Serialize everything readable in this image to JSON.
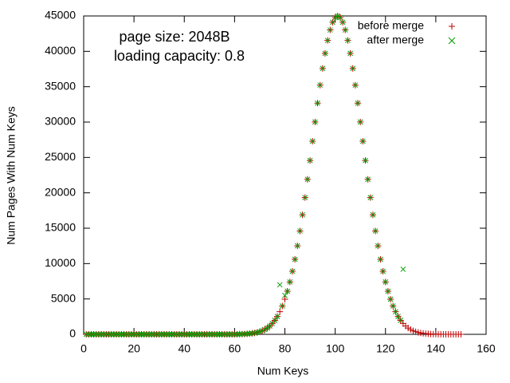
{
  "chart_data": {
    "type": "scatter",
    "annotations": [
      "page size: 2048B",
      "loading capacity: 0.8"
    ],
    "x_label": "Num Keys",
    "y_label": "Num Pages With Num Keys",
    "xlim": [
      0,
      160
    ],
    "xticks": [
      0,
      20,
      40,
      60,
      80,
      100,
      120,
      140,
      160
    ],
    "ylim": [
      0,
      45000
    ],
    "yticks": [
      0,
      5000,
      10000,
      15000,
      20000,
      25000,
      30000,
      35000,
      40000,
      45000
    ],
    "legend": "upper right",
    "x": [
      1,
      2,
      3,
      4,
      5,
      6,
      7,
      8,
      9,
      10,
      11,
      12,
      13,
      14,
      15,
      16,
      17,
      18,
      19,
      20,
      21,
      22,
      23,
      24,
      25,
      26,
      27,
      28,
      29,
      30,
      31,
      32,
      33,
      34,
      35,
      36,
      37,
      38,
      39,
      40,
      41,
      42,
      43,
      44,
      45,
      46,
      47,
      48,
      49,
      50,
      51,
      52,
      53,
      54,
      55,
      56,
      57,
      58,
      59,
      60,
      61,
      62,
      63,
      64,
      65,
      66,
      67,
      68,
      69,
      70,
      71,
      72,
      73,
      74,
      75,
      76,
      77,
      78,
      79,
      80,
      81,
      82,
      83,
      84,
      85,
      86,
      87,
      88,
      89,
      90,
      91,
      92,
      93,
      94,
      95,
      96,
      97,
      98,
      99,
      100,
      101,
      102,
      103,
      104,
      105,
      106,
      107,
      108,
      109,
      110,
      111,
      112,
      113,
      114,
      115,
      116,
      117,
      118,
      119,
      120,
      121,
      122,
      123,
      124,
      125,
      126,
      127,
      128,
      129,
      130,
      131,
      132,
      133,
      134,
      135,
      136,
      137,
      138,
      139,
      140,
      141,
      142,
      143,
      144,
      145,
      146,
      147,
      148,
      149,
      150
    ],
    "series": [
      {
        "name": "before merge",
        "color": "#c00000",
        "marker": "+",
        "values": [
          0,
          0,
          0,
          0,
          0,
          0,
          0,
          0,
          0,
          0,
          0,
          0,
          0,
          0,
          0,
          0,
          0,
          0,
          0,
          0,
          0,
          0,
          0,
          0,
          0,
          0,
          0,
          0,
          0,
          0,
          0,
          0,
          0,
          0,
          0,
          0,
          0,
          0,
          0,
          0,
          0,
          0,
          0,
          0,
          0,
          0,
          0,
          0,
          0,
          0,
          0,
          0,
          0,
          0,
          0,
          0,
          0,
          0,
          0,
          0,
          15,
          22,
          33,
          48,
          69,
          98,
          139,
          194,
          269,
          369,
          500,
          671,
          892,
          1174,
          1531,
          1977,
          2526,
          3195,
          4000,
          4960,
          6090,
          7401,
          8906,
          10606,
          12511,
          14610,
          16890,
          19332,
          21906,
          24575,
          27294,
          30015,
          32676,
          35222,
          37589,
          39713,
          41540,
          43020,
          44109,
          44776,
          45000,
          44776,
          44109,
          43020,
          41540,
          39713,
          37589,
          35222,
          32676,
          30015,
          27294,
          24575,
          21906,
          19332,
          16890,
          14610,
          12511,
          10606,
          8906,
          7401,
          6090,
          4960,
          4000,
          3195,
          2526,
          1977,
          1531,
          1174,
          892,
          671,
          500,
          369,
          269,
          194,
          139,
          98,
          69,
          48,
          33,
          22,
          15,
          10,
          7,
          5,
          3,
          2,
          2,
          1,
          1,
          0
        ]
      },
      {
        "name": "after merge",
        "color": "#00a000",
        "marker": "x",
        "values": [
          0,
          0,
          0,
          0,
          0,
          0,
          0,
          0,
          0,
          0,
          0,
          0,
          0,
          0,
          0,
          0,
          0,
          0,
          0,
          0,
          0,
          0,
          0,
          0,
          0,
          0,
          0,
          0,
          0,
          0,
          0,
          0,
          0,
          0,
          0,
          0,
          0,
          0,
          0,
          0,
          0,
          0,
          0,
          0,
          0,
          0,
          0,
          0,
          0,
          0,
          0,
          0,
          0,
          0,
          0,
          0,
          0,
          0,
          0,
          0,
          15,
          22,
          33,
          48,
          69,
          98,
          139,
          194,
          269,
          369,
          500,
          671,
          892,
          1174,
          1531,
          1977,
          2526,
          7000,
          4000,
          5500,
          6090,
          7401,
          8906,
          10606,
          12511,
          14610,
          16890,
          19332,
          21906,
          24575,
          27294,
          30015,
          32676,
          35222,
          37589,
          39713,
          41540,
          43020,
          44109,
          44776,
          45000,
          44776,
          44109,
          43020,
          41540,
          39713,
          37589,
          35222,
          32676,
          30015,
          27294,
          24575,
          21906,
          19332,
          16890,
          14610,
          12511,
          10606,
          8906,
          7401,
          6090,
          4960,
          4000,
          3195,
          2526,
          1977,
          9200,
          null,
          null,
          null,
          null,
          null,
          null,
          null,
          null,
          null,
          null,
          null,
          null,
          null,
          null,
          null,
          null,
          null,
          null,
          null,
          null,
          null,
          null,
          null
        ]
      }
    ]
  }
}
